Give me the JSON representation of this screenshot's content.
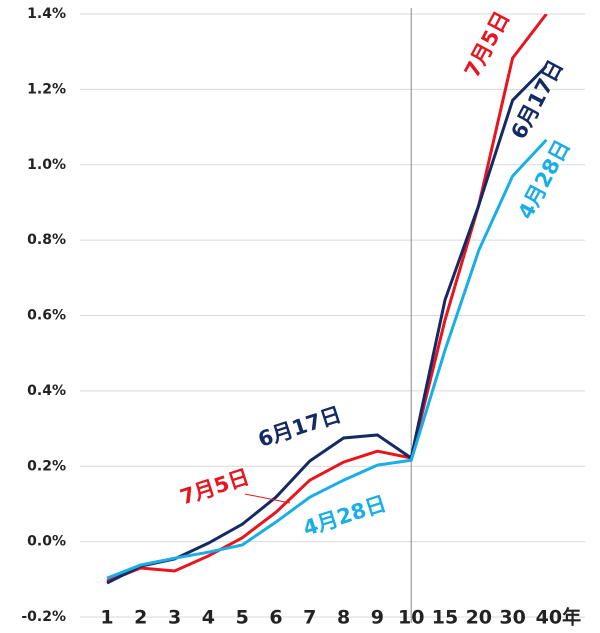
{
  "chart_data": {
    "type": "line",
    "categories": [
      "1",
      "2",
      "3",
      "4",
      "5",
      "6",
      "7",
      "8",
      "9",
      "10",
      "15",
      "20",
      "30",
      "40年"
    ],
    "series": [
      {
        "name": "7月5日",
        "color": "#e8141e",
        "values": [
          -0.105,
          -0.07,
          -0.078,
          -0.038,
          0.01,
          0.078,
          0.163,
          0.211,
          0.24,
          0.222,
          0.588,
          0.893,
          1.283,
          1.4
        ]
      },
      {
        "name": "6月17日",
        "color": "#142a64",
        "values": [
          -0.11,
          -0.065,
          -0.046,
          -0.004,
          0.046,
          0.118,
          0.214,
          0.275,
          0.283,
          0.222,
          0.641,
          0.893,
          1.171,
          1.262
        ]
      },
      {
        "name": "4月28日",
        "color": "#1aaee6",
        "values": [
          -0.097,
          -0.062,
          -0.044,
          -0.028,
          -0.009,
          0.052,
          0.118,
          0.163,
          0.203,
          0.216,
          0.508,
          0.773,
          0.97,
          1.066
        ]
      }
    ],
    "ylim": [
      -0.2,
      1.4
    ],
    "yticks": [
      {
        "value": -0.2,
        "label": "-0.2%"
      },
      {
        "value": 0,
        "label": "0.0%"
      },
      {
        "value": 0.2,
        "label": "0.2%"
      },
      {
        "value": 0.4,
        "label": "0.4%"
      },
      {
        "value": 0.6,
        "label": "0.6%"
      },
      {
        "value": 0.8,
        "label": "0.8%"
      },
      {
        "value": 1.0,
        "label": "1.0%"
      },
      {
        "value": 1.2,
        "label": "1.2%"
      },
      {
        "value": 1.4,
        "label": "1.4%"
      }
    ],
    "grid": true
  }
}
